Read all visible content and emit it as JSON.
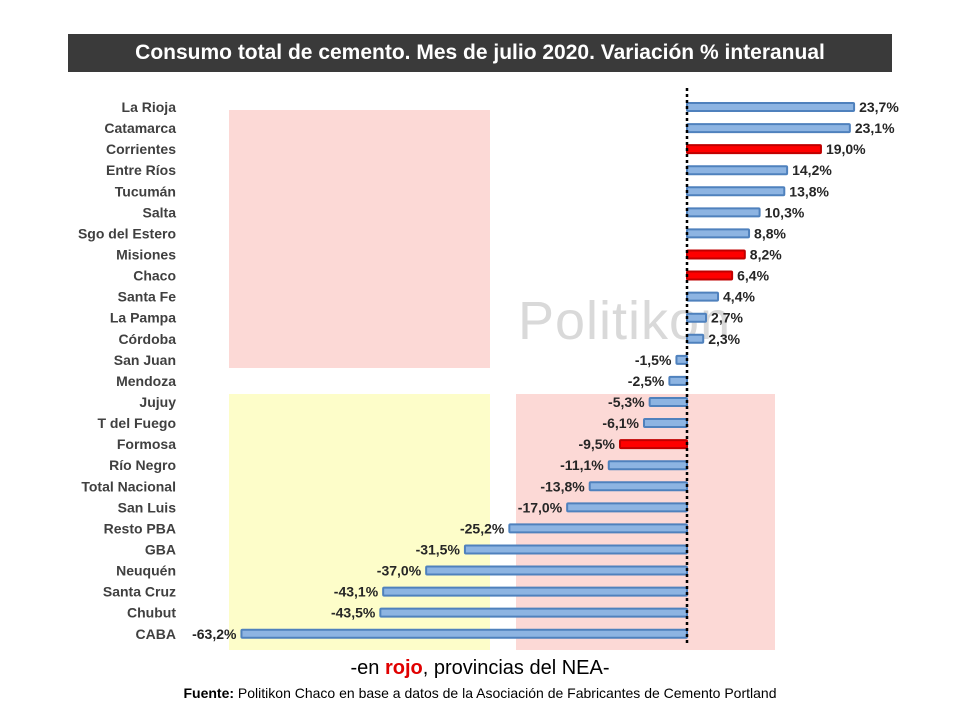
{
  "chart_data": {
    "type": "bar",
    "orientation": "horizontal",
    "title": "Consumo total de cemento. Mes de julio 2020. Variación % interanual",
    "categories": [
      "La Rioja",
      "Catamarca",
      "Corrientes",
      "Entre Ríos",
      "Tucumán",
      "Salta",
      "Sgo del Estero",
      "Misiones",
      "Chaco",
      "Santa Fe",
      "La Pampa",
      "Córdoba",
      "San Juan",
      "Mendoza",
      "Jujuy",
      "T del Fuego",
      "Formosa",
      "Río Negro",
      "Total Nacional",
      "San Luis",
      "Resto PBA",
      "GBA",
      "Neuquén",
      "Santa Cruz",
      "Chubut",
      "CABA"
    ],
    "values": [
      23.7,
      23.1,
      19.0,
      14.2,
      13.8,
      10.3,
      8.8,
      8.2,
      6.4,
      4.4,
      2.7,
      2.3,
      -1.5,
      -2.5,
      -5.3,
      -6.1,
      -9.5,
      -11.1,
      -13.8,
      -17.0,
      -25.2,
      -31.5,
      -37.0,
      -43.1,
      -43.5,
      -63.2
    ],
    "value_labels": [
      "23,7%",
      "23,1%",
      "19,0%",
      "14,2%",
      "13,8%",
      "10,3%",
      "8,8%",
      "8,2%",
      "6,4%",
      "4,4%",
      "2,7%",
      "2,3%",
      "-1,5%",
      "-2,5%",
      "-5,3%",
      "-6,1%",
      "-9,5%",
      "-11,1%",
      "-13,8%",
      "-17,0%",
      "-25,2%",
      "-31,5%",
      "-37,0%",
      "-43,1%",
      "-43,5%",
      "-63,2%"
    ],
    "highlighted": [
      "Corrientes",
      "Misiones",
      "Chaco",
      "Formosa"
    ],
    "colors": {
      "default": "#8db4e2",
      "default_border": "#4f81bd",
      "highlight": "#ff0000",
      "highlight_border": "#c00000",
      "zero_line": "#000000"
    },
    "xlim": [
      -63.2,
      23.7
    ],
    "xlabel": "",
    "ylabel": ""
  },
  "watermark": "Politikon",
  "note": {
    "prefix": "-en ",
    "highlight": "rojo",
    "suffix": ", provincias del NEA-"
  },
  "source": {
    "label": "Fuente:",
    "text": " Politikon Chaco en base a datos de la Asociación de Fabricantes de Cemento Portland"
  }
}
